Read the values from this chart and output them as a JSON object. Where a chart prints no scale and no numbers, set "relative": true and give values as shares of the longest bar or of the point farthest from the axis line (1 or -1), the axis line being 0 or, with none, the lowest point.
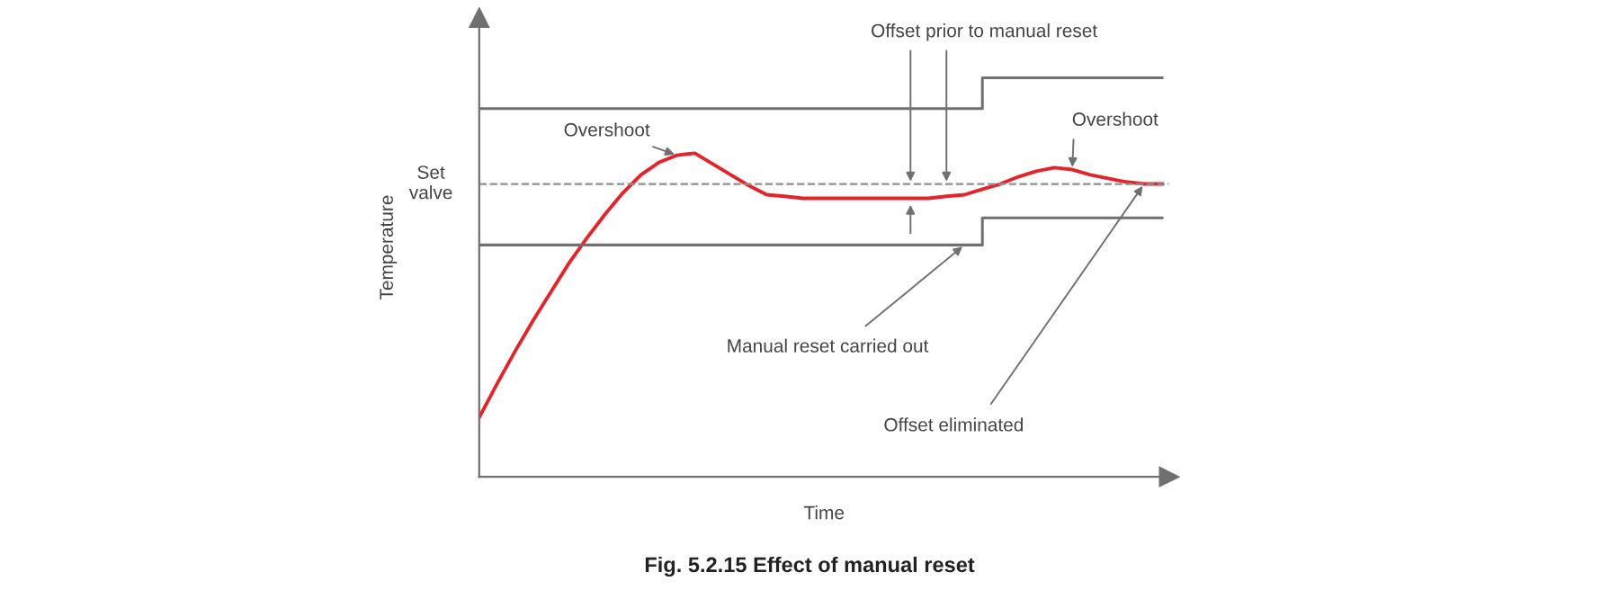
{
  "chart_data": {
    "type": "line",
    "relative": true,
    "title": "Fig. 5.2.15 Effect of manual reset",
    "xlabel": "Time",
    "ylabel": "Temperature",
    "marker": "none",
    "categories": [
      null,
      null,
      null,
      null,
      null,
      null,
      null,
      null,
      null,
      null,
      null,
      null,
      null,
      null,
      null,
      null,
      null,
      null,
      null,
      null,
      null,
      null,
      null,
      null,
      null,
      null,
      null,
      null,
      null,
      null,
      null,
      null,
      null,
      null,
      null,
      null,
      null,
      null,
      null
    ],
    "series": [
      {
        "color": "#e3242b",
        "values": [
          0.149,
          0.234,
          0.315,
          0.392,
          0.464,
          0.536,
          0.599,
          0.658,
          0.712,
          0.757,
          0.788,
          0.806,
          0.811,
          0.784,
          0.757,
          0.73,
          0.707,
          0.703,
          0.698,
          0.698,
          0.698,
          0.698,
          0.698,
          0.698,
          0.698,
          0.698,
          0.703,
          0.707,
          0.721,
          0.734,
          0.752,
          0.766,
          0.775,
          0.77,
          0.757,
          0.748,
          0.739,
          0.734,
          0.734
        ]
      },
      {
        "type": "step",
        "color": "#707070",
        "values": [
          0.923,
          0.923,
          0.923,
          0.923,
          0.923,
          0.923,
          0.923,
          0.923,
          0.923,
          0.923,
          0.923,
          0.923,
          0.923,
          0.923,
          0.923,
          0.923,
          0.923,
          0.923,
          0.923,
          0.923,
          0.923,
          0.923,
          0.923,
          0.923,
          0.923,
          0.923,
          0.923,
          0.923,
          1,
          1,
          1,
          1,
          1,
          1,
          1,
          1,
          1,
          1,
          1
        ]
      },
      {
        "type": "step",
        "color": "#707070",
        "values": [
          0.581,
          0.581,
          0.581,
          0.581,
          0.581,
          0.581,
          0.581,
          0.581,
          0.581,
          0.581,
          0.581,
          0.581,
          0.581,
          0.581,
          0.581,
          0.581,
          0.581,
          0.581,
          0.581,
          0.581,
          0.581,
          0.581,
          0.581,
          0.581,
          0.581,
          0.581,
          0.581,
          0.581,
          0.649,
          0.649,
          0.649,
          0.649,
          0.649,
          0.649,
          0.649,
          0.649,
          0.649,
          0.649,
          0.649
        ]
      }
    ],
    "ref_lines": [
      {
        "axis": "y",
        "value": 0.734,
        "label": "Set\nvalve",
        "color": "#909090",
        "line_style": "dashed"
      }
    ],
    "annotations": [
      "Overshoot",
      "Overshoot",
      "Offset prior to manual reset",
      "Manual reset carried out",
      "Offset eliminated"
    ]
  }
}
